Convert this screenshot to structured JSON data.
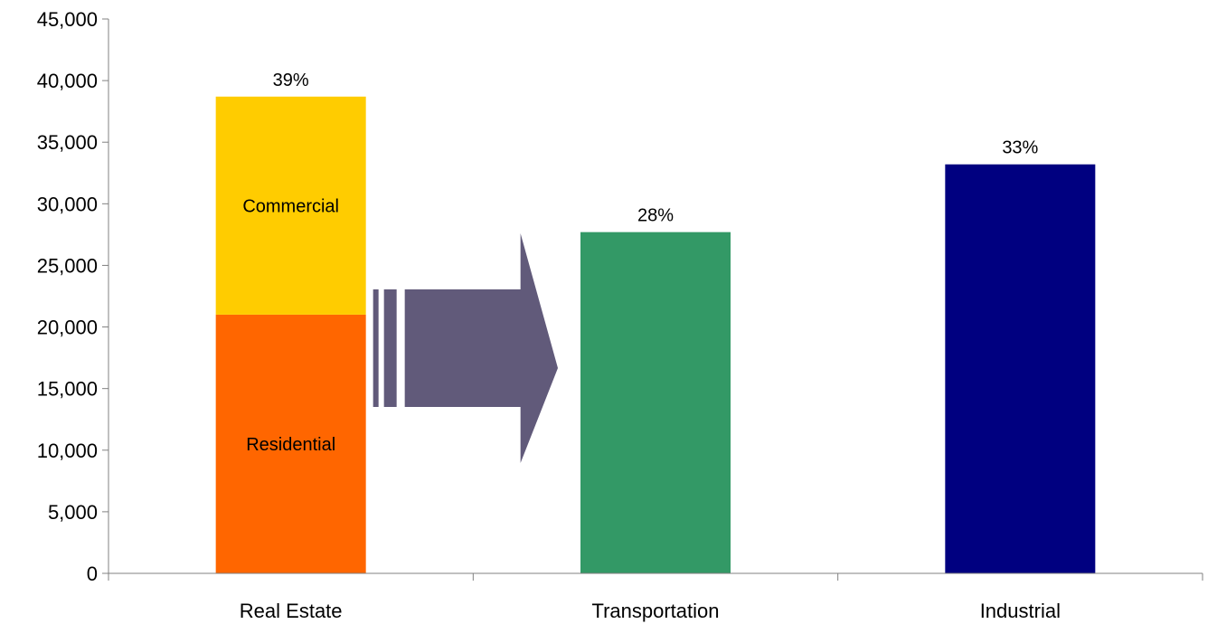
{
  "chart_data": {
    "type": "bar",
    "stacked": true,
    "categories": [
      "Real Estate",
      "Transportation",
      "Industrial"
    ],
    "series": [
      {
        "name": "Residential",
        "values": [
          21000,
          27700,
          33200
        ],
        "colors": [
          "#FF6600",
          "#339966",
          "#000080"
        ]
      },
      {
        "name": "Commercial",
        "values": [
          17700,
          0,
          0
        ],
        "colors": [
          "#FFCC00",
          "#FFCC00",
          "#FFCC00"
        ]
      }
    ],
    "segment_labels": [
      {
        "category": "Real Estate",
        "series": "Residential",
        "text": "Residential"
      },
      {
        "category": "Real Estate",
        "series": "Commercial",
        "text": "Commercial"
      }
    ],
    "data_labels": [
      "39%",
      "28%",
      "33%"
    ],
    "ylim": [
      0,
      45000
    ],
    "yticks": [
      "0",
      "5,000",
      "10,000",
      "15,000",
      "20,000",
      "25,000",
      "30,000",
      "35,000",
      "40,000",
      "45,000"
    ],
    "ytick_values": [
      0,
      5000,
      10000,
      15000,
      20000,
      25000,
      30000,
      35000,
      40000,
      45000
    ],
    "title": "",
    "xlabel": "",
    "ylabel": "",
    "grid": false,
    "legend": "none",
    "arrow": {
      "from": "Real Estate",
      "to": "Transportation",
      "color": "#615A7A"
    },
    "axis_color": "#808080"
  }
}
